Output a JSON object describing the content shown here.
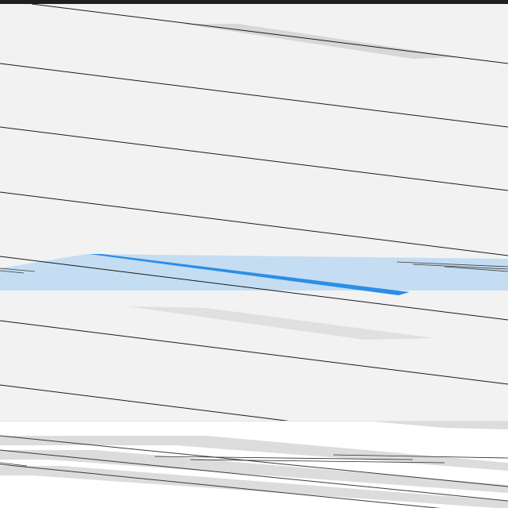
{
  "window": {
    "background": "#f2f2f2",
    "titlebar_color": "#1f1f1f"
  },
  "list": {
    "row_count": 7,
    "selected_index": 3,
    "highlight_color": "#c5ddf2",
    "accent_color": "#2b8ee8",
    "divider_color": "#1a1a1a",
    "rows": [
      {
        "label": ""
      },
      {
        "label": ""
      },
      {
        "label": ""
      },
      {
        "label": ""
      },
      {
        "label": ""
      },
      {
        "label": ""
      },
      {
        "label": ""
      }
    ]
  },
  "footer": {
    "background": "#ffffff",
    "stripe_color": "#dcdcdc",
    "text_left": "",
    "text_right": ""
  }
}
